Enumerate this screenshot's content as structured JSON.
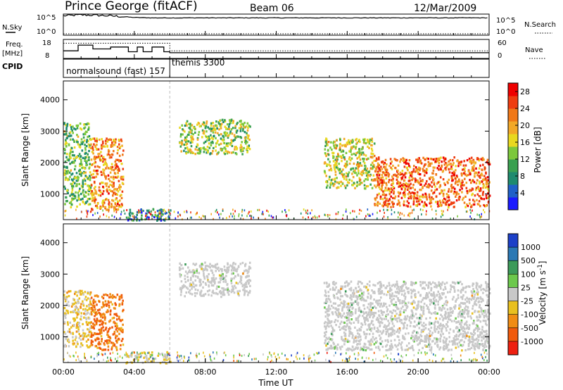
{
  "header": {
    "station": "Prince George (fitACF)",
    "beam": "Beam 06",
    "date": "12/Mar/2009"
  },
  "chart_data": [
    {
      "type": "line",
      "panel": "nsky",
      "left_label": "N.Sky",
      "right_label": "N.Search",
      "left_ticks": [
        "10^5",
        "10^0"
      ],
      "right_ticks": [
        "10^5",
        "10^0"
      ],
      "x": [
        "00:00",
        "01:00",
        "02:00",
        "03:00",
        "04:00",
        "05:00",
        "06:00",
        "07:00",
        "08:00",
        "09:00",
        "10:00",
        "11:00",
        "12:00",
        "13:00",
        "14:00",
        "15:00",
        "16:00",
        "17:00",
        "18:00",
        "19:00",
        "20:00",
        "21:00",
        "22:00",
        "23:00",
        "24:00"
      ],
      "series": [
        {
          "values": [
            4.6,
            4.8,
            4.7,
            4.5,
            4.2,
            4.1,
            4.1,
            4.1,
            4.1,
            4.1,
            4.1,
            4.1,
            4.1,
            4.1,
            4.1,
            4.1,
            4.1,
            4.1,
            4.1,
            4.1,
            4.1,
            4.1,
            4.1,
            4.1,
            4.1
          ]
        }
      ],
      "ylim": [
        0,
        5
      ]
    },
    {
      "type": "line",
      "panel": "freq",
      "left_label_lines": [
        "Freq.",
        "[MHz]"
      ],
      "right_label": "Nave",
      "left_ticks": [
        "18",
        "8"
      ],
      "right_ticks": [
        "60",
        "0"
      ],
      "series": [
        {
          "style": "solid",
          "x": [
            "00:00",
            "00:50",
            "00:50",
            "01:40",
            "01:40",
            "02:40",
            "02:40",
            "03:40",
            "03:40",
            "04:10",
            "04:10",
            "04:30",
            "04:30",
            "05:00",
            "05:00",
            "05:40",
            "05:40",
            "06:00",
            "06:00",
            "24:00"
          ],
          "values": [
            12,
            12,
            15,
            15,
            13,
            13,
            14,
            14,
            11.5,
            11.5,
            14,
            14,
            11.5,
            11.5,
            14,
            14,
            11.5,
            11.5,
            11,
            11
          ]
        },
        {
          "style": "dotted",
          "x": [
            "00:00",
            "06:00",
            "06:00",
            "24:00"
          ],
          "values": [
            16,
            16,
            12,
            12
          ]
        }
      ],
      "ylim": [
        8,
        18
      ]
    },
    {
      "type": "table",
      "panel": "cpid",
      "label": "CPID",
      "segments": [
        {
          "start": "00:00",
          "text": "normalsound (fast) 157"
        },
        {
          "start": "06:00",
          "text": "themis 3300"
        }
      ]
    },
    {
      "type": "heatmap",
      "panel": "power",
      "ylabel": "Slant Range [km]",
      "ylim": [
        180,
        4600
      ],
      "yticks": [
        1000,
        2000,
        3000,
        4000
      ],
      "xlim": [
        "00:00",
        "24:00"
      ],
      "colorbar": {
        "label": "Power [dB]",
        "range": [
          0,
          30
        ],
        "ticks": [
          4,
          8,
          12,
          16,
          20,
          24,
          28
        ],
        "colors": [
          "#1a1aff",
          "#2060c8",
          "#1e8a6e",
          "#3aa050",
          "#7cc83c",
          "#e8d820",
          "#f2a828",
          "#f07818",
          "#ee3c10",
          "#ee0000"
        ]
      },
      "regions": [
        {
          "t": [
            "00:00",
            "01:30"
          ],
          "range": [
            600,
            3300
          ],
          "dB": 12
        },
        {
          "t": [
            "01:30",
            "03:20"
          ],
          "range": [
            500,
            2800
          ],
          "dB": 22
        },
        {
          "t": [
            "03:30",
            "06:00"
          ],
          "range": [
            180,
            550
          ],
          "dB": 6
        },
        {
          "t": [
            "06:30",
            "10:30"
          ],
          "range": [
            2300,
            3400
          ],
          "dB": 14
        },
        {
          "t": [
            "14:40",
            "17:30"
          ],
          "range": [
            1200,
            2800
          ],
          "dB": 16
        },
        {
          "t": [
            "17:30",
            "24:00"
          ],
          "range": [
            600,
            2200
          ],
          "dB": 24
        }
      ]
    },
    {
      "type": "heatmap",
      "panel": "velocity",
      "ylabel": "Slant Range [km]",
      "xlabel": "Time UT",
      "ylim": [
        180,
        4600
      ],
      "yticks": [
        1000,
        2000,
        3000,
        4000
      ],
      "xlim": [
        "00:00",
        "24:00"
      ],
      "xticks": [
        "00:00",
        "04:00",
        "08:00",
        "12:00",
        "16:00",
        "20:00",
        "00:00"
      ],
      "colorbar": {
        "label": "Velocity  [m s^-1]",
        "range": [
          -1200,
          1200
        ],
        "ticks": [
          "1000",
          "500",
          "100",
          "25",
          "-25",
          "-100",
          "-500",
          "-1000"
        ],
        "colors": [
          "#1c40c8",
          "#2a78b4",
          "#3c9a5a",
          "#6cc84c",
          "#c8c8c8",
          "#e8c020",
          "#f08c14",
          "#f05a0c",
          "#ee2010"
        ]
      },
      "regions": [
        {
          "t": [
            "00:00",
            "01:30"
          ],
          "range": [
            700,
            2500
          ],
          "velocity": -200
        },
        {
          "t": [
            "01:30",
            "03:20"
          ],
          "range": [
            600,
            2400
          ],
          "velocity": -600
        },
        {
          "t": [
            "03:30",
            "06:00"
          ],
          "range": [
            180,
            550
          ],
          "velocity": -100
        },
        {
          "t": [
            "06:30",
            "10:30"
          ],
          "range": [
            2300,
            3400
          ],
          "velocity": 0
        },
        {
          "t": [
            "14:40",
            "24:00"
          ],
          "range": [
            600,
            2800
          ],
          "velocity": 0
        }
      ]
    }
  ]
}
